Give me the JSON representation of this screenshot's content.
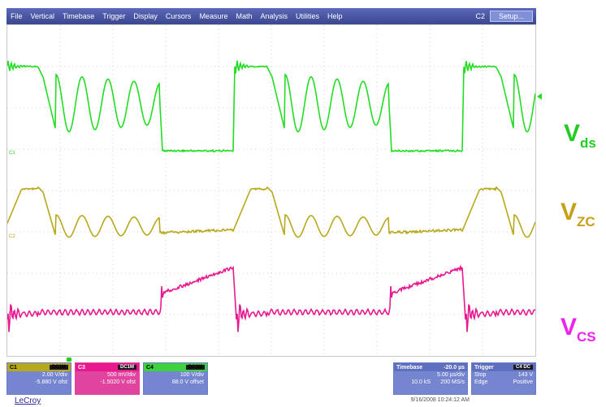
{
  "menu": {
    "items": [
      "File",
      "Vertical",
      "Timebase",
      "Trigger",
      "Display",
      "Cursors",
      "Measure",
      "Math",
      "Analysis",
      "Utilities",
      "Help"
    ],
    "channel_indicator": "C2",
    "setup_label": "Setup..."
  },
  "waveforms": {
    "ch1": {
      "color": "#22dd22",
      "marker": "C1"
    },
    "ch2": {
      "color": "#b8a81c",
      "marker": "C2"
    },
    "ch3": {
      "color": "#e8198e",
      "marker": "C3"
    }
  },
  "channels": {
    "c1": {
      "label": "C1",
      "tag": "DC1M",
      "scale": "2.00 V/div",
      "offset": "-5.880 V ofst"
    },
    "c3": {
      "label": "C3",
      "tag": "DC1M",
      "scale": "500 mV/div",
      "offset": "-1.5020 V ofst"
    },
    "c4": {
      "label": "C4",
      "tag": "DC1M",
      "scale": "100 V/div",
      "offset": "88.0 V offset"
    }
  },
  "timebase": {
    "label": "Timebase",
    "delay": "-20.0 µs",
    "per_div": "5.00 µs/div",
    "samples": "10.0 kS",
    "rate": "200 MS/s"
  },
  "trigger": {
    "label": "Trigger",
    "tag": "C4 DC",
    "mode": "Stop",
    "level": "143 V",
    "type": "Edge",
    "slope": "Positive"
  },
  "brand": "LeCroy",
  "datetime": "9/16/2008 10:24:12 AM",
  "labels": {
    "vds": {
      "main": "V",
      "sub": "ds",
      "color": "#22cc22"
    },
    "vzc": {
      "main": "V",
      "sub": "ZC",
      "color": "#c8a018"
    },
    "vcs": {
      "main": "V",
      "sub": "CS",
      "color": "#ee22ee"
    }
  }
}
